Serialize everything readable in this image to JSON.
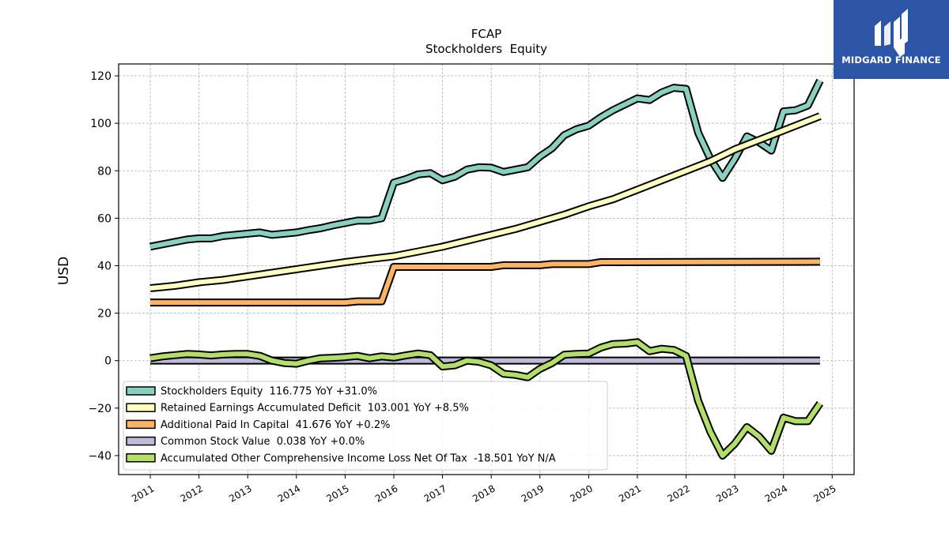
{
  "brand": {
    "name": "MIDGARD FINANCE",
    "bg": "#2c55a8"
  },
  "chart_data": {
    "type": "line",
    "title": "FCAP",
    "subtitle": "Stockholders  Equity",
    "ylabel": "USD",
    "xlabel": "",
    "xlim": [
      2010.35,
      2025.45
    ],
    "ylim": [
      -48,
      125
    ],
    "yticks": [
      -40,
      -20,
      0,
      20,
      40,
      60,
      80,
      100,
      120
    ],
    "xticks": [
      2011,
      2012,
      2013,
      2014,
      2015,
      2016,
      2017,
      2018,
      2019,
      2020,
      2021,
      2022,
      2023,
      2024,
      2025
    ],
    "grid": true,
    "legend_position": "lower-left",
    "series": [
      {
        "name": "Stockholders Equity",
        "legend": "Stockholders Equity  116.775 YoY +31.0%",
        "color": "#88d0c0",
        "x": [
          2011.0,
          2011.25,
          2011.5,
          2011.75,
          2012.0,
          2012.25,
          2012.5,
          2012.75,
          2013.0,
          2013.25,
          2013.5,
          2013.75,
          2014.0,
          2014.25,
          2014.5,
          2014.75,
          2015.0,
          2015.25,
          2015.5,
          2015.75,
          2016.0,
          2016.25,
          2016.5,
          2016.75,
          2017.0,
          2017.25,
          2017.5,
          2017.75,
          2018.0,
          2018.25,
          2018.5,
          2018.75,
          2019.0,
          2019.25,
          2019.5,
          2019.75,
          2020.0,
          2020.25,
          2020.5,
          2020.75,
          2021.0,
          2021.25,
          2021.5,
          2021.75,
          2022.0,
          2022.25,
          2022.5,
          2022.75,
          2023.0,
          2023.25,
          2023.5,
          2023.75,
          2024.0,
          2024.25,
          2024.5,
          2024.75
        ],
        "values": [
          48,
          49,
          50,
          51,
          51.5,
          51.5,
          52.5,
          53,
          53.5,
          54,
          53,
          53.5,
          54,
          55,
          55.8,
          57,
          58,
          59,
          59,
          60,
          75,
          76.5,
          78.5,
          79,
          76,
          77.5,
          80.5,
          81.5,
          81.3,
          79.5,
          80.5,
          81.5,
          86,
          89.5,
          95,
          97.5,
          99,
          102.5,
          105.5,
          108,
          110.5,
          109.8,
          113,
          115,
          114.5,
          96,
          85,
          77,
          85,
          94.5,
          92,
          88.5,
          105,
          105.5,
          107.5,
          118
        ]
      },
      {
        "name": "Retained Earnings Accumulated Deficit",
        "legend": "Retained Earnings Accumulated Deficit  103.001 YoY +8.5%",
        "color": "#ffffbf",
        "x": [
          2011.0,
          2011.5,
          2012.0,
          2012.5,
          2013.0,
          2013.5,
          2014.0,
          2014.5,
          2015.0,
          2015.5,
          2016.0,
          2016.5,
          2017.0,
          2017.5,
          2018.0,
          2018.5,
          2019.0,
          2019.5,
          2020.0,
          2020.5,
          2021.0,
          2021.5,
          2022.0,
          2022.5,
          2023.0,
          2023.5,
          2024.0,
          2024.5,
          2024.75
        ],
        "values": [
          30.5,
          31.5,
          33,
          34,
          35.5,
          37,
          38.5,
          40,
          41.5,
          42.8,
          44,
          46,
          48,
          50.5,
          53,
          55.5,
          58.5,
          61.5,
          65,
          68,
          72,
          76,
          80,
          84,
          89,
          93,
          97,
          101,
          103
        ]
      },
      {
        "name": "Additional Paid In Capital",
        "legend": "Additional Paid In Capital  41.676 YoY +0.2%",
        "color": "#fdb462",
        "x": [
          2011.0,
          2015.0,
          2015.25,
          2015.75,
          2016.0,
          2018.0,
          2018.25,
          2019.0,
          2019.25,
          2020.0,
          2020.25,
          2024.75
        ],
        "values": [
          24.5,
          24.5,
          25,
          25,
          39.5,
          39.5,
          40.2,
          40.2,
          40.7,
          40.7,
          41.5,
          41.7
        ]
      },
      {
        "name": "Common Stock Value",
        "legend": "Common Stock Value  0.038 YoY +0.0%",
        "color": "#bebada",
        "x": [
          2011.0,
          2024.75
        ],
        "values": [
          0.04,
          0.04
        ]
      },
      {
        "name": "Accumulated Other Comprehensive Income Loss Net Of Tax",
        "legend": "Accumulated Other Comprehensive Income Loss Net Of Tax  -18.501 YoY N/A",
        "color": "#b3de69",
        "x": [
          2011.0,
          2011.25,
          2011.5,
          2011.75,
          2012.0,
          2012.25,
          2012.5,
          2012.75,
          2013.0,
          2013.25,
          2013.5,
          2013.75,
          2014.0,
          2014.25,
          2014.5,
          2014.75,
          2015.0,
          2015.25,
          2015.5,
          2015.75,
          2016.0,
          2016.25,
          2016.5,
          2016.75,
          2017.0,
          2017.25,
          2017.5,
          2017.75,
          2018.0,
          2018.25,
          2018.5,
          2018.75,
          2019.0,
          2019.25,
          2019.5,
          2019.75,
          2020.0,
          2020.25,
          2020.5,
          2020.75,
          2021.0,
          2021.25,
          2021.5,
          2021.75,
          2022.0,
          2022.25,
          2022.5,
          2022.75,
          2023.0,
          2023.25,
          2023.5,
          2023.75,
          2024.0,
          2024.25,
          2024.5,
          2024.75
        ],
        "values": [
          1,
          1.8,
          2.3,
          2.8,
          2.6,
          2.2,
          2.6,
          2.8,
          2.8,
          2,
          0,
          -1,
          -1.3,
          0,
          1,
          1.2,
          1.5,
          2,
          1,
          1.8,
          1.3,
          2.2,
          3,
          2.3,
          -2.5,
          -2,
          0,
          -0.5,
          -2,
          -5.5,
          -6,
          -7,
          -3.5,
          -1,
          2.5,
          2.8,
          3,
          5.5,
          7,
          7.2,
          7.8,
          4,
          5,
          4.5,
          2,
          -17,
          -30,
          -40,
          -35,
          -28,
          -32,
          -38,
          -24,
          -25.5,
          -25.5,
          -18
        ]
      }
    ]
  }
}
